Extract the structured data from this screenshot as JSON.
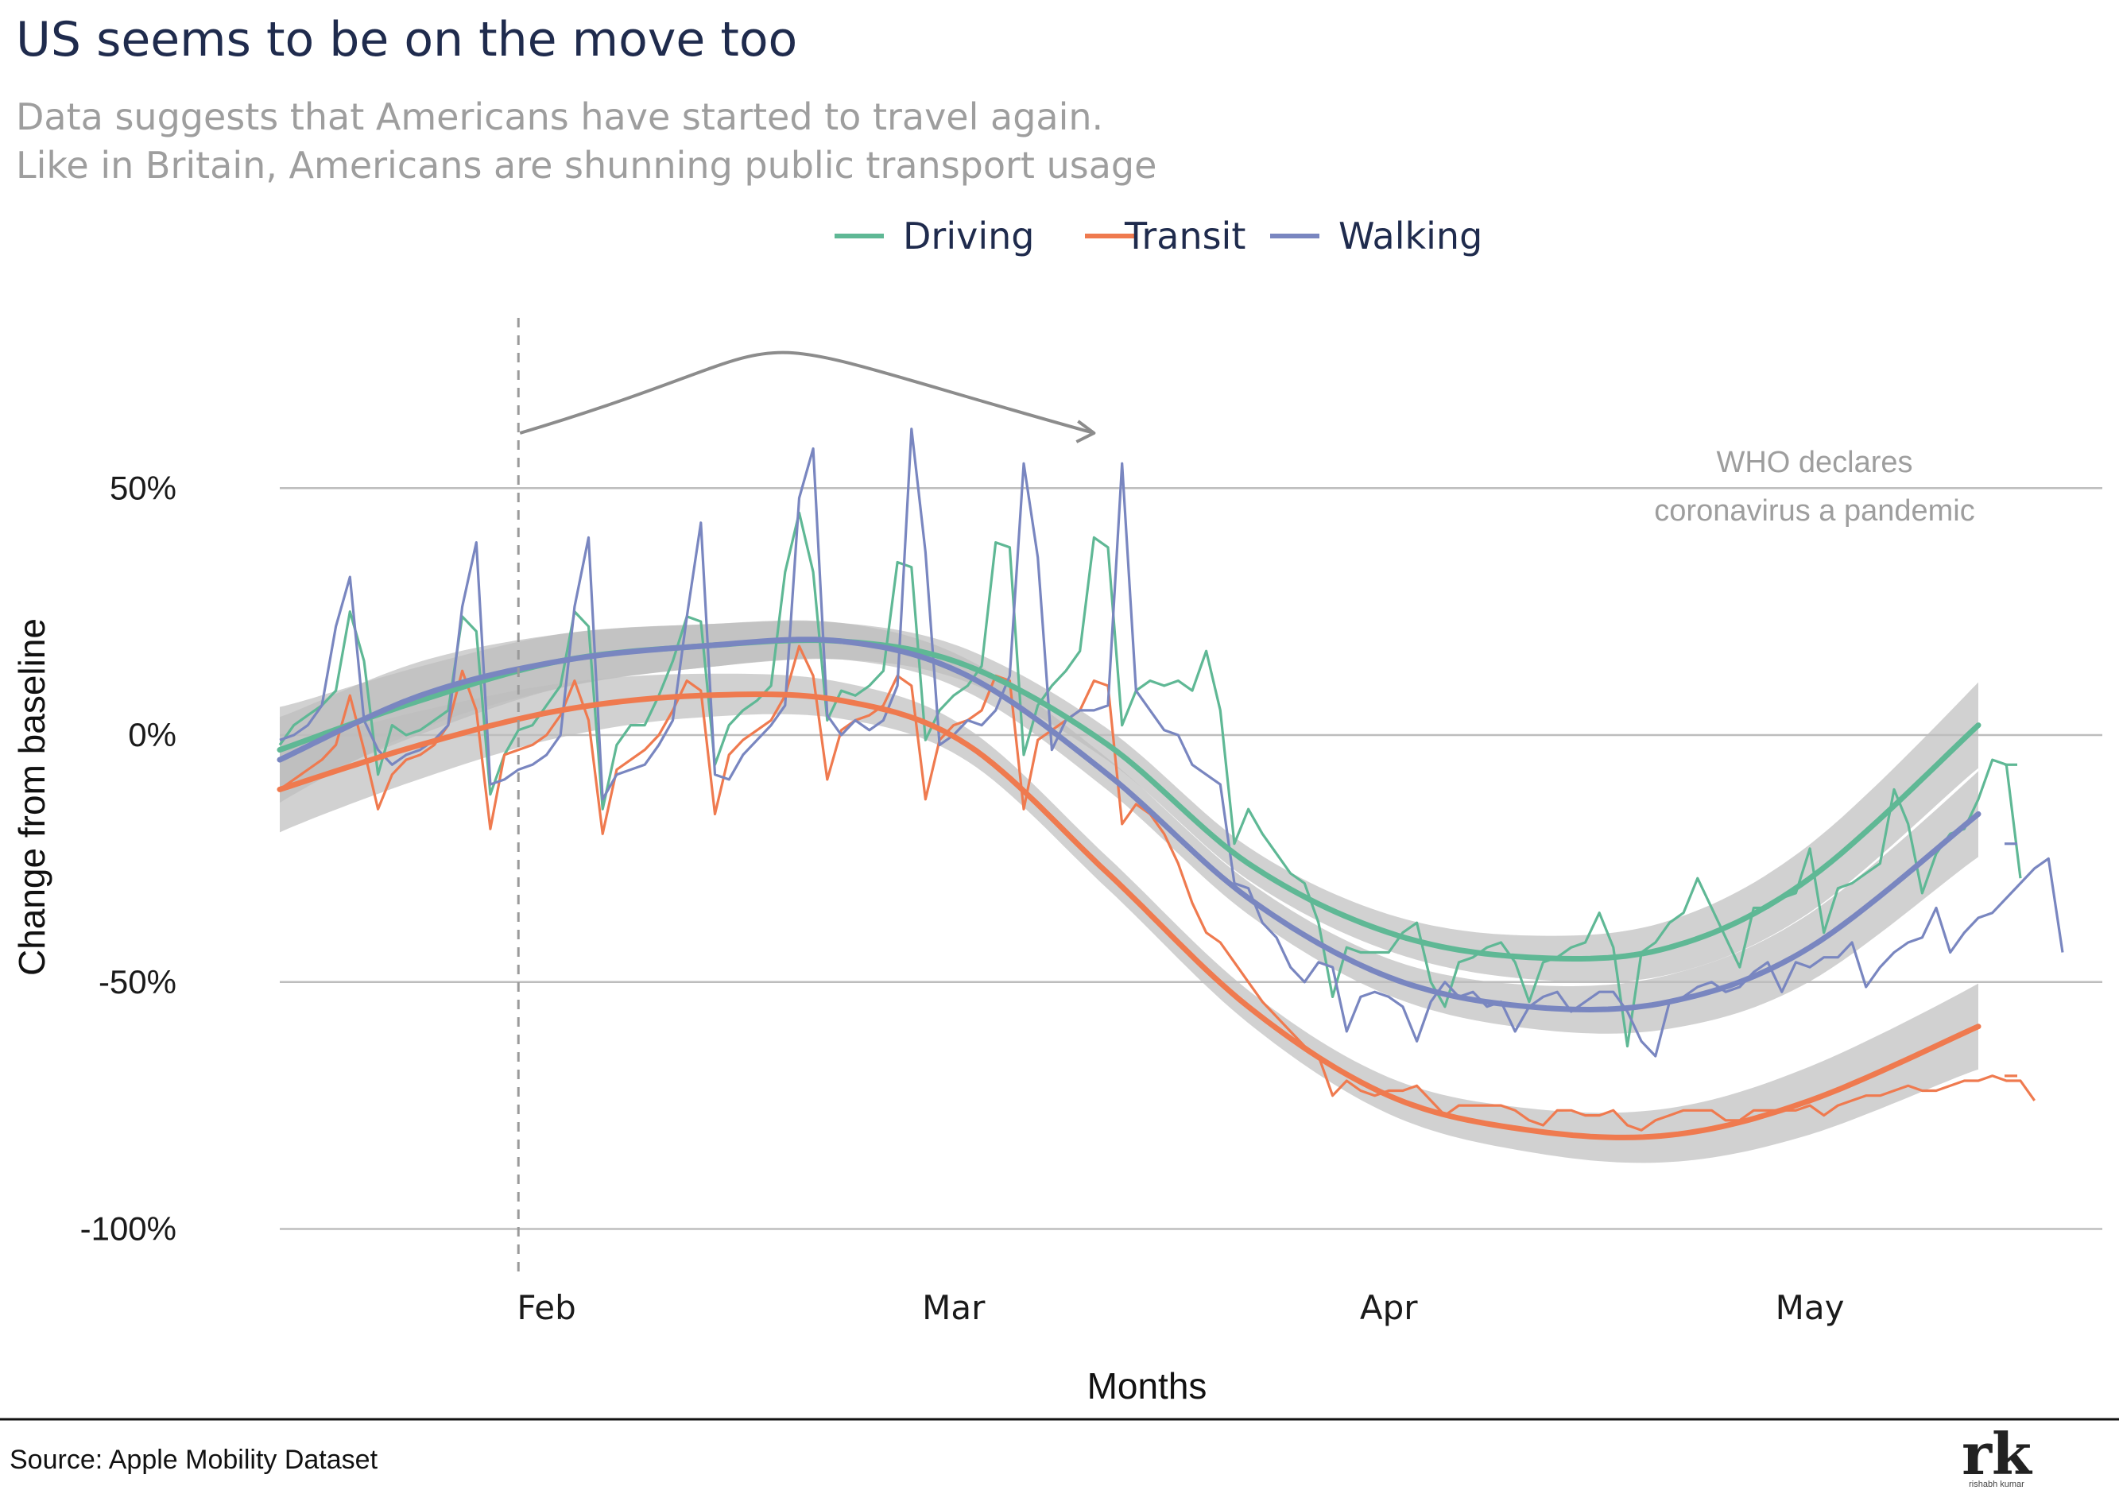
{
  "header": {
    "title": "US seems to be on the move too",
    "subtitle_line1": "Data suggests that Americans have started to travel again.",
    "subtitle_line2": "Like in Britain, Americans are shunning public transport usage"
  },
  "annotation": {
    "line1": "WHO declares",
    "line2": "coronavirus a pandemic"
  },
  "footer": {
    "source": "Source: Apple Mobility Dataset",
    "logo": "rk",
    "logo_sub": "rishabh kumar"
  },
  "colors": {
    "Driving": "#5fb895",
    "Transit": "#ef7a4f",
    "Walking": "#7986c0",
    "band": "#bdbdbd",
    "grid": "#bdbdbd",
    "annotation": "#8c8c8c"
  },
  "chart_data": {
    "type": "line",
    "title": "US seems to be on the move too",
    "xlabel": "Months",
    "ylabel": "Change from baseline",
    "x_range": [
      "2020-01-13",
      "2020-05-16"
    ],
    "ylim": [
      -110,
      65
    ],
    "y_ticks": [
      -100,
      -50,
      0,
      50
    ],
    "y_tick_labels": [
      "-100%",
      "-50%",
      "0%",
      "50%"
    ],
    "x_ticks": [
      {
        "date": "2020-02-01",
        "label": "Feb"
      },
      {
        "date": "2020-03-01",
        "label": "Mar"
      },
      {
        "date": "2020-04-01",
        "label": "Apr"
      },
      {
        "date": "2020-05-01",
        "label": "May"
      }
    ],
    "grid": true,
    "legend_position": "top",
    "reference_date": "2020-01-30",
    "annotation_date": "2020-03-11",
    "smooth_trends": [
      {
        "name": "Driving",
        "dates": [
          "2020-01-13",
          "2020-01-23",
          "2020-02-02",
          "2020-02-12",
          "2020-02-22",
          "2020-03-02",
          "2020-03-12",
          "2020-03-22",
          "2020-04-01",
          "2020-04-11",
          "2020-04-21",
          "2020-05-01",
          "2020-05-13"
        ],
        "values": [
          -3,
          7,
          15,
          18,
          19,
          14,
          -2,
          -26,
          -40,
          -45,
          -43,
          -29,
          2
        ]
      },
      {
        "name": "Transit",
        "dates": [
          "2020-01-13",
          "2020-01-23",
          "2020-02-02",
          "2020-02-12",
          "2020-02-22",
          "2020-03-02",
          "2020-03-12",
          "2020-03-22",
          "2020-04-01",
          "2020-04-11",
          "2020-04-21",
          "2020-05-01",
          "2020-05-13"
        ],
        "values": [
          -11,
          -2,
          5,
          8,
          7,
          -2,
          -28,
          -55,
          -73,
          -80,
          -81,
          -74,
          -59
        ]
      },
      {
        "name": "Walking",
        "dates": [
          "2020-01-13",
          "2020-01-23",
          "2020-02-02",
          "2020-02-12",
          "2020-02-22",
          "2020-03-02",
          "2020-03-12",
          "2020-03-22",
          "2020-04-01",
          "2020-04-11",
          "2020-04-21",
          "2020-05-01",
          "2020-05-13"
        ],
        "values": [
          -5,
          8,
          15,
          18,
          19,
          12,
          -8,
          -33,
          -49,
          -55,
          -54,
          -43,
          -16
        ]
      }
    ],
    "series": [
      {
        "name": "Driving",
        "start_date": "2020-01-13",
        "values": [
          -2,
          2,
          4,
          6,
          9,
          25,
          15,
          -8,
          2,
          0,
          1,
          3,
          5,
          24,
          21,
          -12,
          -4,
          1,
          2,
          6,
          10,
          25,
          22,
          -15,
          -2,
          2,
          2,
          8,
          15,
          24,
          23,
          -6,
          2,
          5,
          7,
          10,
          33,
          45,
          33,
          3,
          9,
          8,
          10,
          13,
          35,
          34,
          -1,
          5,
          8,
          10,
          14,
          39,
          38,
          -4,
          6,
          10,
          13,
          17,
          40,
          38,
          2,
          9,
          11,
          10,
          11,
          9,
          17,
          5,
          -22,
          -15,
          -20,
          -24,
          -28,
          -30,
          -38,
          -53,
          -43,
          -44,
          -44,
          -44,
          -40,
          -38,
          -50,
          -55,
          -46,
          -45,
          -43,
          -42,
          -46,
          -54,
          -46,
          -45,
          -43,
          -42,
          -36,
          -43,
          -63,
          -44,
          -42,
          -38,
          -36,
          -29,
          -35,
          -41,
          -47,
          -35,
          -35,
          -33,
          -32,
          -23,
          -40,
          -31,
          -30,
          -28,
          -26,
          -11,
          -18,
          -32,
          -24,
          -20,
          -19,
          -13,
          -5,
          -6,
          -29
        ],
        "trailing_value": -6
      },
      {
        "name": "Transit",
        "start_date": "2020-01-13",
        "values": [
          -11,
          -9,
          -7,
          -5,
          -2,
          8,
          -3,
          -15,
          -8,
          -5,
          -4,
          -2,
          2,
          13,
          5,
          -19,
          -4,
          -3,
          -2,
          0,
          4,
          11,
          3,
          -20,
          -7,
          -5,
          -3,
          0,
          5,
          11,
          9,
          -16,
          -4,
          -1,
          1,
          3,
          8,
          18,
          12,
          -9,
          1,
          3,
          4,
          6,
          12,
          10,
          -13,
          -1,
          2,
          3,
          5,
          12,
          11,
          -15,
          -1,
          1,
          3,
          5,
          11,
          10,
          -18,
          -14,
          -16,
          -20,
          -26,
          -34,
          -40,
          -42,
          -46,
          -50,
          -54,
          -57,
          -60,
          -63,
          -65,
          -73,
          -70,
          -72,
          -73,
          -72,
          -72,
          -71,
          -74,
          -77,
          -75,
          -75,
          -75,
          -75,
          -76,
          -78,
          -79,
          -76,
          -76,
          -77,
          -77,
          -76,
          -79,
          -80,
          -78,
          -77,
          -76,
          -76,
          -76,
          -78,
          -78,
          -76,
          -76,
          -76,
          -76,
          -75,
          -77,
          -75,
          -74,
          -73,
          -73,
          -72,
          -71,
          -72,
          -72,
          -71,
          -70,
          -70,
          -69,
          -70,
          -70,
          -74
        ],
        "trailing_value": -69
      },
      {
        "name": "Walking",
        "start_date": "2020-01-13",
        "values": [
          -1,
          0,
          2,
          6,
          22,
          32,
          3,
          -3,
          -6,
          -4,
          -3,
          -1,
          2,
          26,
          39,
          -10,
          -9,
          -7,
          -6,
          -4,
          0,
          26,
          40,
          -13,
          -8,
          -7,
          -6,
          -2,
          3,
          24,
          43,
          -8,
          -9,
          -4,
          -1,
          2,
          6,
          48,
          58,
          4,
          0,
          3,
          1,
          3,
          10,
          62,
          37,
          -2,
          0,
          3,
          2,
          5,
          12,
          55,
          36,
          -3,
          3,
          5,
          5,
          6,
          55,
          9,
          5,
          1,
          0,
          -6,
          -8,
          -10,
          -30,
          -31,
          -38,
          -41,
          -47,
          -50,
          -46,
          -47,
          -60,
          -53,
          -52,
          -53,
          -55,
          -62,
          -54,
          -50,
          -53,
          -52,
          -55,
          -54,
          -60,
          -55,
          -53,
          -52,
          -56,
          -54,
          -52,
          -52,
          -56,
          -62,
          -65,
          -54,
          -53,
          -51,
          -50,
          -52,
          -51,
          -48,
          -46,
          -52,
          -46,
          -47,
          -45,
          -45,
          -42,
          -51,
          -47,
          -44,
          -42,
          -41,
          -35,
          -44,
          -40,
          -37,
          -36,
          -33,
          -30,
          -27,
          -25,
          -44
        ],
        "trailing_value": -22
      }
    ]
  }
}
